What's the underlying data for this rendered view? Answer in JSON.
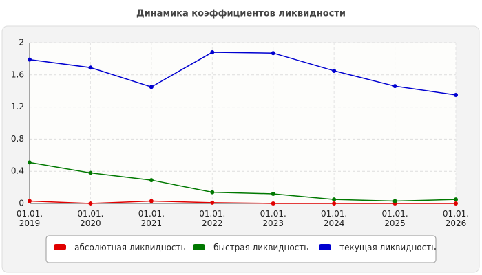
{
  "chart_data": {
    "type": "line",
    "title": "Динамика коэффициентов ликвидности",
    "categories": [
      "01.01. 2019",
      "01.01. 2020",
      "01.01. 2021",
      "01.01. 2022",
      "01.01. 2023",
      "01.01. 2024",
      "01.01. 2025",
      "01.01. 2026"
    ],
    "series": [
      {
        "name": "- абсолютная ликвидность",
        "color": "#e00000",
        "values": [
          0.03,
          0.0,
          0.03,
          0.01,
          0.0,
          0.0,
          0.0,
          0.0
        ]
      },
      {
        "name": "- быстрая ликвидность",
        "color": "#007800",
        "values": [
          0.51,
          0.38,
          0.29,
          0.14,
          0.12,
          0.05,
          0.03,
          0.05
        ]
      },
      {
        "name": "- текущая ликвидность",
        "color": "#0000d0",
        "values": [
          1.79,
          1.69,
          1.45,
          1.88,
          1.87,
          1.65,
          1.46,
          1.35
        ]
      }
    ],
    "ylim": [
      0,
      2
    ],
    "yticks": [
      0,
      0.4,
      0.8,
      1.2,
      1.6,
      2
    ],
    "grid": true
  }
}
